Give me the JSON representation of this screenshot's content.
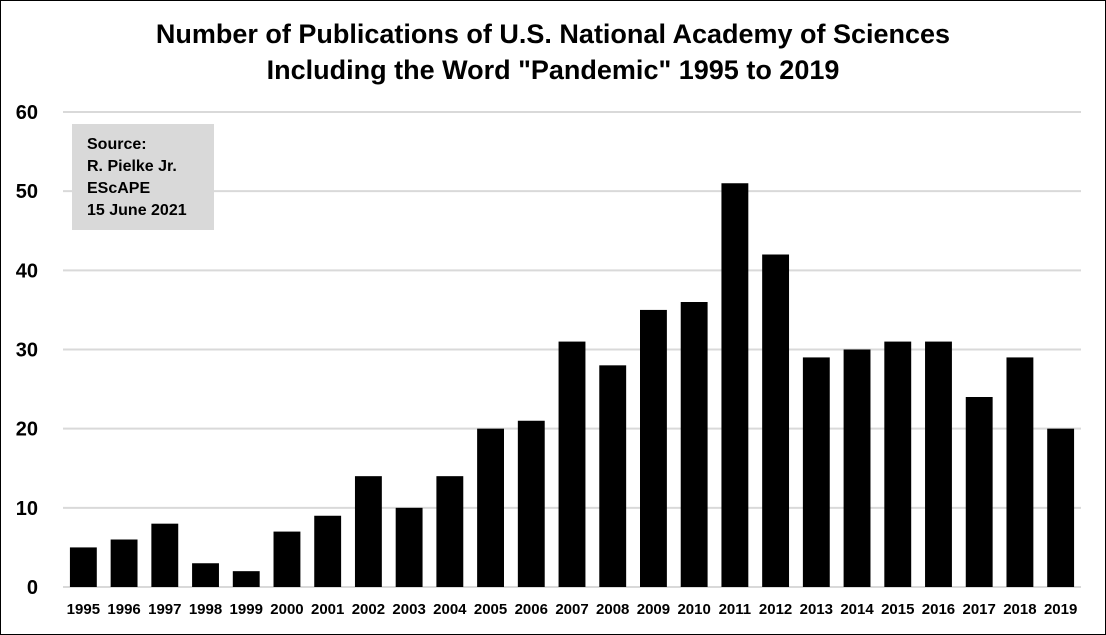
{
  "colors": {
    "bar": "#000000",
    "grid": "#d9d9d9",
    "source_box": "#d9d9d9"
  },
  "source_note": [
    "Source:",
    "R. Pielke Jr.",
    "EScAPE",
    "15 June 2021"
  ],
  "chart_data": {
    "type": "bar",
    "title_lines": [
      "Number of Publications of U.S. National Academy of Sciences",
      "Including the Word \"Pandemic\" 1995 to 2019"
    ],
    "xlabel": "",
    "ylabel": "",
    "categories": [
      "1995",
      "1996",
      "1997",
      "1998",
      "1999",
      "2000",
      "2001",
      "2002",
      "2003",
      "2004",
      "2005",
      "2006",
      "2007",
      "2008",
      "2009",
      "2010",
      "2011",
      "2012",
      "2013",
      "2014",
      "2015",
      "2016",
      "2017",
      "2018",
      "2019"
    ],
    "values": [
      5,
      6,
      8,
      3,
      2,
      7,
      9,
      14,
      10,
      14,
      20,
      21,
      31,
      28,
      35,
      36,
      51,
      42,
      29,
      30,
      31,
      31,
      24,
      29,
      20
    ],
    "ylim": [
      0,
      60
    ],
    "yticks": [
      0,
      10,
      20,
      30,
      40,
      50,
      60
    ],
    "grid": true,
    "legend": "none"
  }
}
